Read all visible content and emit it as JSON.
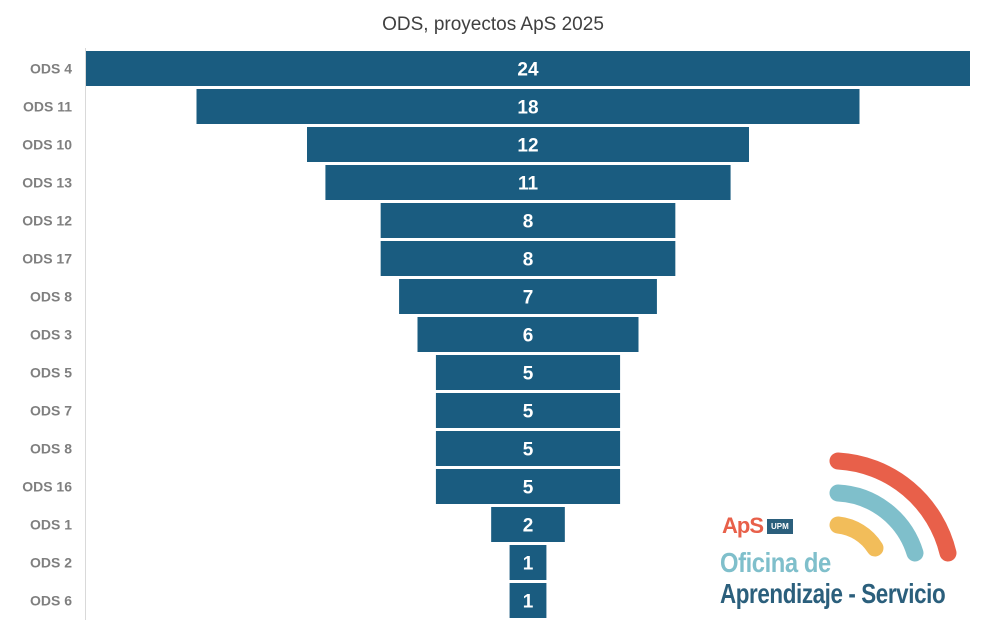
{
  "chart_data": {
    "type": "bar",
    "orientation": "horizontal-funnel",
    "title": "ODS, proyectos ApS 2025",
    "categories": [
      "ODS 4",
      "ODS 11",
      "ODS 10",
      "ODS 13",
      "ODS 12",
      "ODS 17",
      "ODS 8",
      "ODS 3",
      "ODS 5",
      "ODS 7",
      "ODS 8",
      "ODS 16",
      "ODS 1",
      "ODS 2",
      "ODS 6"
    ],
    "values": [
      24,
      18,
      12,
      11,
      8,
      8,
      7,
      6,
      5,
      5,
      5,
      5,
      2,
      1,
      1
    ],
    "bar_color": "#1a5c80",
    "label_color": "#ffffff",
    "xlabel": "",
    "ylabel": "",
    "grid": false,
    "legend": "none"
  },
  "logo": {
    "aps": "ApS",
    "upm": "UPM",
    "line1": "Oficina de",
    "line2": "Aprendizaje - Servicio",
    "colors": {
      "red": "#e8604a",
      "teal": "#7fbfcb",
      "yellow": "#f2bd5a",
      "navy": "#2b5f7c"
    }
  }
}
